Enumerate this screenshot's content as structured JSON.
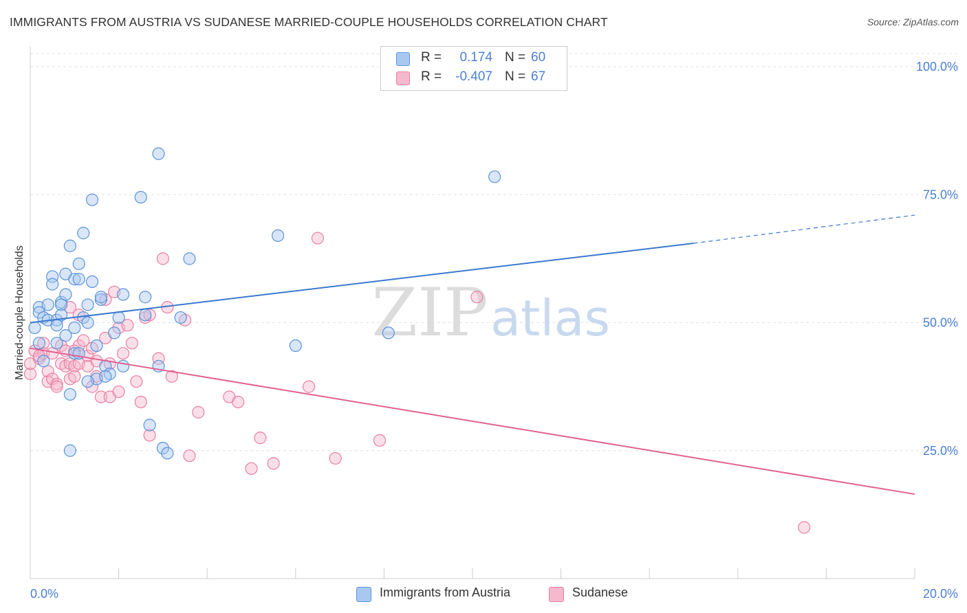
{
  "title": "IMMIGRANTS FROM AUSTRIA VS SUDANESE MARRIED-COUPLE HOUSEHOLDS CORRELATION CHART",
  "source": "Source: ZipAtlas.com",
  "watermark": {
    "zip": "ZIP",
    "atlas": "atlas"
  },
  "legend": {
    "r_label": "R =",
    "n_label": "N =",
    "rows": [
      {
        "r": "0.174",
        "n": "60"
      },
      {
        "r": "-0.407",
        "n": "67"
      }
    ]
  },
  "colors": {
    "blue_fill": "#a9c8f0",
    "blue_stroke": "#5b93d9",
    "blue_line": "#3a78d0",
    "pink_fill": "#f5b8cc",
    "pink_stroke": "#e87fa3",
    "pink_line": "#e0608f",
    "axis_text": "#4a7fd4"
  },
  "chart_data": {
    "type": "scatter",
    "title": "IMMIGRANTS FROM AUSTRIA VS SUDANESE MARRIED-COUPLE HOUSEHOLDS CORRELATION CHART",
    "xlabel": "",
    "ylabel": "Married-couple Households",
    "xlim": [
      0,
      20
    ],
    "ylim": [
      0,
      105
    ],
    "x_tick_labels": [
      {
        "value": 0,
        "label": "0.0%"
      },
      {
        "value": 20,
        "label": "20.0%"
      }
    ],
    "y_tick_labels": [
      {
        "value": 100,
        "label": "100.0%"
      },
      {
        "value": 75,
        "label": "75.0%"
      },
      {
        "value": 50,
        "label": "50.0%"
      },
      {
        "value": 25,
        "label": "25.0%"
      }
    ],
    "series": [
      {
        "name": "Immigrants from Austria",
        "color": "blue",
        "trend": {
          "x0": 0,
          "y0": 50,
          "x1": 15,
          "y1": 65.5,
          "dash_x1": 20,
          "dash_y1": 71
        },
        "points": [
          [
            0.1,
            49
          ],
          [
            0.2,
            53
          ],
          [
            0.2,
            52
          ],
          [
            0.3,
            51
          ],
          [
            0.4,
            53.5
          ],
          [
            0.4,
            50.5
          ],
          [
            0.5,
            59
          ],
          [
            0.5,
            57.5
          ],
          [
            0.6,
            46
          ],
          [
            0.6,
            50.5
          ],
          [
            0.7,
            54
          ],
          [
            0.7,
            53.5
          ],
          [
            0.7,
            51.5
          ],
          [
            0.8,
            59.5
          ],
          [
            0.8,
            47.5
          ],
          [
            0.8,
            55.5
          ],
          [
            0.9,
            36
          ],
          [
            0.9,
            25
          ],
          [
            0.9,
            65
          ],
          [
            1.0,
            58.5
          ],
          [
            1.0,
            44
          ],
          [
            1.1,
            61.5
          ],
          [
            1.1,
            58.5
          ],
          [
            1.2,
            67.5
          ],
          [
            1.2,
            51
          ],
          [
            1.3,
            50
          ],
          [
            1.3,
            53.5
          ],
          [
            1.4,
            58
          ],
          [
            1.4,
            74
          ],
          [
            1.5,
            45.5
          ],
          [
            1.5,
            39
          ],
          [
            1.6,
            54.5
          ],
          [
            1.6,
            55
          ],
          [
            1.7,
            41.5
          ],
          [
            1.8,
            40
          ],
          [
            1.9,
            48
          ],
          [
            2.0,
            51
          ],
          [
            2.1,
            55.5
          ],
          [
            2.1,
            41.5
          ],
          [
            2.5,
            74.5
          ],
          [
            2.6,
            55
          ],
          [
            2.6,
            51.5
          ],
          [
            2.7,
            30
          ],
          [
            2.9,
            83
          ],
          [
            2.9,
            41.5
          ],
          [
            3.0,
            25.5
          ],
          [
            3.1,
            24.5
          ],
          [
            3.4,
            51
          ],
          [
            3.6,
            62.5
          ],
          [
            5.6,
            67
          ],
          [
            6.0,
            45.5
          ],
          [
            8.1,
            48
          ],
          [
            10.5,
            78.5
          ],
          [
            0.2,
            46
          ],
          [
            1.3,
            38.5
          ],
          [
            0.3,
            42.5
          ],
          [
            0.6,
            49.5
          ],
          [
            1.1,
            44
          ],
          [
            1.7,
            39.5
          ],
          [
            1.0,
            49
          ]
        ]
      },
      {
        "name": "Sudanese",
        "color": "pink",
        "trend": {
          "x0": 0,
          "y0": 45,
          "x1": 20,
          "y1": 16.5
        },
        "points": [
          [
            0.0,
            40
          ],
          [
            0.0,
            42
          ],
          [
            0.1,
            44.5
          ],
          [
            0.2,
            43
          ],
          [
            0.3,
            46
          ],
          [
            0.3,
            44
          ],
          [
            0.4,
            40.5
          ],
          [
            0.4,
            38.5
          ],
          [
            0.5,
            44
          ],
          [
            0.5,
            39
          ],
          [
            0.6,
            38
          ],
          [
            0.6,
            37.5
          ],
          [
            0.7,
            45.5
          ],
          [
            0.7,
            42
          ],
          [
            0.8,
            44.5
          ],
          [
            0.8,
            41.5
          ],
          [
            0.9,
            42
          ],
          [
            0.9,
            39
          ],
          [
            0.9,
            53
          ],
          [
            1.0,
            41.5
          ],
          [
            1.0,
            39.5
          ],
          [
            1.1,
            45.5
          ],
          [
            1.1,
            51.5
          ],
          [
            1.1,
            42
          ],
          [
            1.2,
            46.5
          ],
          [
            1.3,
            43.5
          ],
          [
            1.3,
            41.5
          ],
          [
            1.4,
            37.5
          ],
          [
            1.4,
            45
          ],
          [
            1.5,
            42.5
          ],
          [
            1.5,
            39.5
          ],
          [
            1.6,
            35.5
          ],
          [
            1.7,
            54.5
          ],
          [
            1.7,
            47
          ],
          [
            1.8,
            35.5
          ],
          [
            1.8,
            42
          ],
          [
            1.9,
            56
          ],
          [
            2.0,
            49
          ],
          [
            2.0,
            36.5
          ],
          [
            2.1,
            44
          ],
          [
            2.2,
            49.5
          ],
          [
            2.3,
            46
          ],
          [
            2.4,
            38.5
          ],
          [
            2.5,
            34.5
          ],
          [
            2.6,
            51
          ],
          [
            2.7,
            28
          ],
          [
            2.7,
            51.5
          ],
          [
            2.9,
            43
          ],
          [
            3.0,
            62.5
          ],
          [
            3.1,
            53
          ],
          [
            3.2,
            39.5
          ],
          [
            3.5,
            50.5
          ],
          [
            3.6,
            24
          ],
          [
            3.8,
            32.5
          ],
          [
            4.5,
            35.5
          ],
          [
            4.7,
            34.5
          ],
          [
            5.0,
            21.5
          ],
          [
            5.2,
            27.5
          ],
          [
            5.5,
            22.5
          ],
          [
            6.3,
            37.5
          ],
          [
            6.5,
            66.5
          ],
          [
            6.9,
            23.5
          ],
          [
            7.9,
            27
          ],
          [
            10.1,
            55
          ],
          [
            17.5,
            10
          ],
          [
            0.2,
            43.5
          ],
          [
            1.0,
            44.5
          ]
        ]
      }
    ]
  },
  "bottom_legend": [
    {
      "label": "Immigrants from Austria"
    },
    {
      "label": "Sudanese"
    }
  ]
}
